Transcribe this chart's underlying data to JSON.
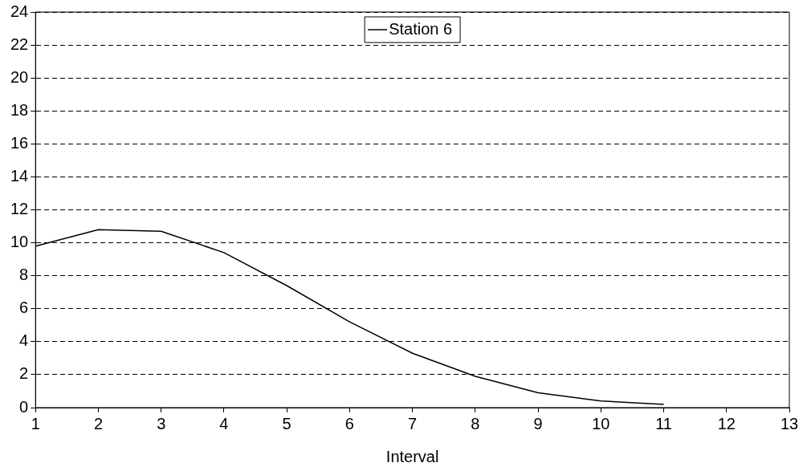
{
  "chart_data": {
    "type": "line",
    "xlabel": "Interval",
    "x": [
      1,
      2,
      3,
      4,
      5,
      6,
      7,
      8,
      9,
      10,
      11
    ],
    "series": [
      {
        "name": "Station 6",
        "color": "#000000",
        "values": [
          9.8,
          10.8,
          10.7,
          9.4,
          7.4,
          5.2,
          3.3,
          1.9,
          0.9,
          0.4,
          0.2
        ]
      }
    ],
    "xlim": [
      1,
      13
    ],
    "xticks": [
      1,
      2,
      3,
      4,
      5,
      6,
      7,
      8,
      9,
      10,
      11,
      12,
      13
    ],
    "ylim": [
      0,
      24
    ],
    "yticks": [
      0,
      2,
      4,
      6,
      8,
      10,
      12,
      14,
      16,
      18,
      20,
      22,
      24
    ],
    "grid": "y",
    "legend": "top",
    "marker": "none",
    "line_style": "solid"
  }
}
